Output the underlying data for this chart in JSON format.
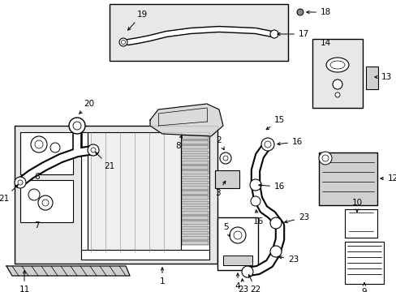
{
  "bg_color": "#ffffff",
  "fig_width": 4.89,
  "fig_height": 3.6,
  "dpi": 100,
  "box_fill": "#e8e8e8",
  "line_color": "#000000",
  "font_size": 7.5
}
